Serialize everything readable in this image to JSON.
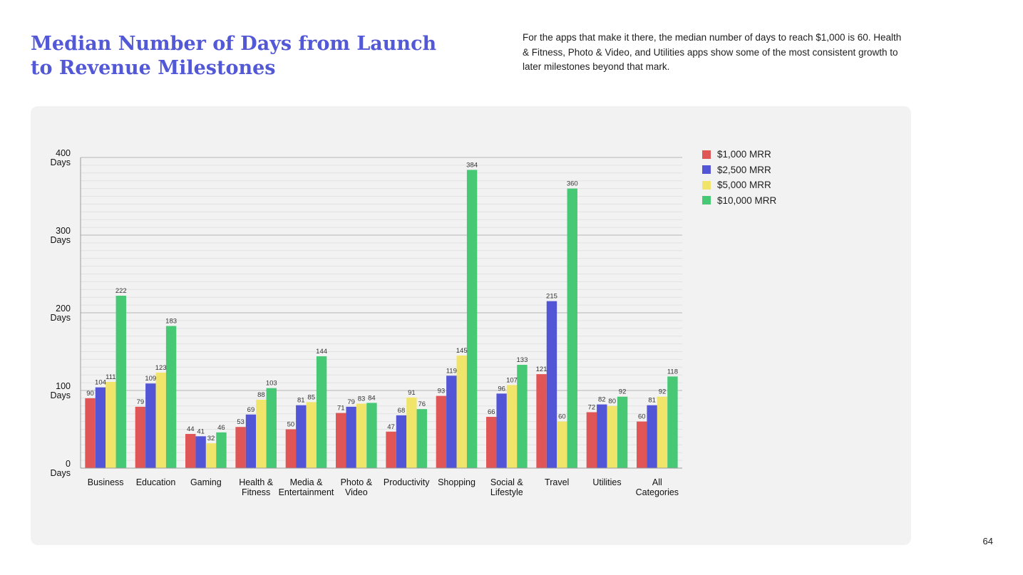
{
  "header": {
    "title_line1": "Median Number of Days from Launch",
    "title_line2": "to Revenue Milestones",
    "description": "For the apps that make it there, the median number of days to reach $1,000 is 60. Health & Fitness, Photo & Video, and Utilities apps show some of the most consistent growth to later milestones beyond that mark."
  },
  "legend": [
    {
      "label": "$1,000 MRR",
      "color": "#e05556"
    },
    {
      "label": "$2,500 MRR",
      "color": "#5256d6"
    },
    {
      "label": "$5,000 MRR",
      "color": "#f0e56a"
    },
    {
      "label": "$10,000 MRR",
      "color": "#46c875"
    }
  ],
  "page_number": "64",
  "chart_data": {
    "type": "bar",
    "categories": [
      [
        "Business"
      ],
      [
        "Education"
      ],
      [
        "Gaming"
      ],
      [
        "Health &",
        "Fitness"
      ],
      [
        "Media &",
        "Entertainment"
      ],
      [
        "Photo &",
        "Video"
      ],
      [
        "Productivity"
      ],
      [
        "Shopping"
      ],
      [
        "Social &",
        "Lifestyle"
      ],
      [
        "Travel"
      ],
      [
        "Utilities"
      ],
      [
        "All",
        "Categories"
      ]
    ],
    "series": [
      {
        "name": "$1,000 MRR",
        "color": "#e05556",
        "values": [
          90,
          79,
          44,
          53,
          50,
          71,
          47,
          93,
          66,
          121,
          72,
          60
        ]
      },
      {
        "name": "$2,500 MRR",
        "color": "#5256d6",
        "values": [
          104,
          109,
          41,
          69,
          81,
          79,
          68,
          119,
          96,
          215,
          82,
          81
        ]
      },
      {
        "name": "$5,000 MRR",
        "color": "#f0e56a",
        "values": [
          111,
          123,
          32,
          88,
          85,
          83,
          91,
          145,
          107,
          60,
          80,
          92
        ]
      },
      {
        "name": "$10,000 MRR",
        "color": "#46c875",
        "values": [
          222,
          183,
          46,
          103,
          144,
          84,
          76,
          384,
          133,
          360,
          92,
          118
        ]
      }
    ],
    "y_ticks": [
      {
        "value": 0,
        "line1": "0",
        "line2": "Days"
      },
      {
        "value": 100,
        "line1": "100",
        "line2": "Days"
      },
      {
        "value": 200,
        "line1": "200",
        "line2": "Days"
      },
      {
        "value": 300,
        "line1": "300",
        "line2": "Days"
      },
      {
        "value": 400,
        "line1": "400",
        "line2": "Days"
      }
    ],
    "ylim": [
      0,
      400
    ],
    "minor_grid_step": 10,
    "xlabel": "",
    "ylabel": "",
    "legend_position": "right"
  }
}
